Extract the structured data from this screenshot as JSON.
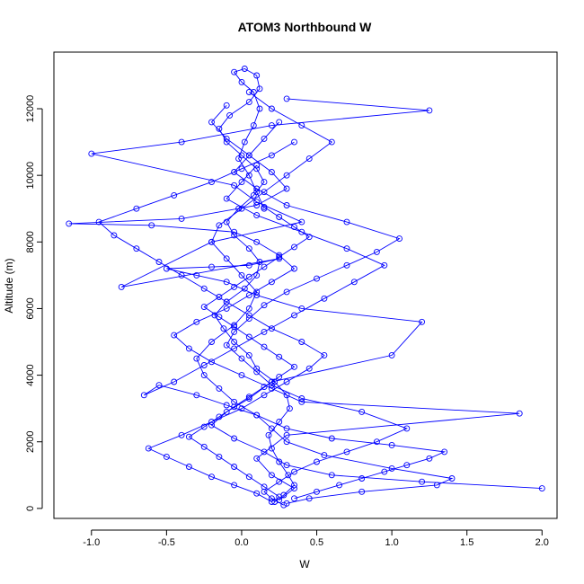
{
  "chart_data": {
    "type": "scatter",
    "title": "ATOM3 Northbound W",
    "xlabel": "W",
    "ylabel": "Altitude (m)",
    "xlim": [
      -1.25,
      2.1
    ],
    "ylim": [
      -300,
      13700
    ],
    "xticks": [
      -1.0,
      -0.5,
      0.0,
      0.5,
      1.0,
      1.5,
      2.0
    ],
    "yticks": [
      0,
      2000,
      4000,
      6000,
      8000,
      10000,
      12000
    ],
    "xtick_labels": [
      "-1.0",
      "-0.5",
      "0.0",
      "0.5",
      "1.0",
      "1.5",
      "2.0"
    ],
    "ytick_labels": [
      "0",
      "2000",
      "4000",
      "6000",
      "8000",
      "10000",
      "12000"
    ],
    "grid": false,
    "legend": "none",
    "color": "#0000ff",
    "series": [
      {
        "x": [
          0.22,
          0.28,
          0.35,
          0.31,
          0.25,
          0.2,
          0.18,
          0.25,
          0.32,
          0.3,
          0.22,
          0.1,
          0.05,
          -0.05,
          -0.12,
          -0.18,
          -0.1,
          0.02,
          0.1,
          0.12,
          0.05,
          -0.05,
          -0.1,
          -0.02,
          0.08,
          0.15,
          0.1,
          0.0,
          -0.1,
          -0.15,
          -0.08,
          0.05,
          0.12,
          0.1,
          0.02,
          -0.05,
          0.0,
          0.08,
          0.12,
          0.08,
          0.02,
          -0.02,
          0.05,
          0.1,
          0.15
        ],
        "y": [
          200,
          400,
          700,
          1000,
          1400,
          1800,
          2200,
          2600,
          3000,
          3400,
          3800,
          4200,
          4600,
          5000,
          5400,
          5800,
          6200,
          6600,
          7000,
          7400,
          7800,
          8200,
          8600,
          9000,
          9400,
          9800,
          10200,
          10600,
          11000,
          11400,
          11800,
          12200,
          12600,
          13000,
          13200,
          13100,
          12800,
          12500,
          12000,
          11500,
          11000,
          10500,
          10000,
          9500,
          9000
        ]
      },
      {
        "x": [
          0.3,
          0.45,
          0.8,
          1.3,
          1.4,
          1.0,
          0.55,
          0.3,
          0.2,
          0.1,
          -0.05,
          -0.15,
          -0.25,
          -0.3,
          -0.2,
          -0.05,
          0.05,
          0.1,
          0.0,
          -0.1,
          -0.2,
          -0.15,
          0.0,
          0.15,
          0.3,
          0.45,
          0.6,
          0.4,
          0.2,
          0.05
        ],
        "y": [
          150,
          300,
          500,
          700,
          900,
          1200,
          1600,
          2000,
          2400,
          2800,
          3200,
          3600,
          4000,
          4500,
          5000,
          5500,
          6000,
          6500,
          7000,
          7500,
          8000,
          8500,
          9000,
          9500,
          10000,
          10500,
          11000,
          11500,
          12000,
          12500
        ]
      },
      {
        "x": [
          0.25,
          0.35,
          0.2,
          0.1,
          0.3,
          1.85,
          0.4,
          0.2,
          0.0,
          -0.2,
          -0.35,
          -0.45,
          -0.3,
          -0.1,
          0.05,
          0.2,
          0.35,
          0.25,
          0.1,
          -0.05,
          -0.6,
          -1.15,
          -0.4,
          0.1,
          0.3,
          0.2,
          0.05,
          -0.1,
          -0.2,
          -0.1
        ],
        "y": [
          250,
          600,
          1000,
          1500,
          2200,
          2850,
          3200,
          3600,
          4000,
          4400,
          4800,
          5200,
          5600,
          6000,
          6400,
          6800,
          7200,
          7600,
          8000,
          8300,
          8500,
          8550,
          8700,
          9100,
          9600,
          10100,
          10600,
          11100,
          11600,
          12100
        ]
      },
      {
        "x": [
          2.0,
          1.2,
          0.6,
          0.3,
          0.15,
          -0.05,
          -0.2,
          -0.1,
          0.05,
          0.2,
          1.0,
          1.2,
          0.4,
          0.1,
          -0.1,
          -0.3,
          -0.5,
          -0.2,
          0.05,
          0.25,
          -0.8,
          -0.2,
          0.4,
          0.1,
          -0.05,
          -1.0,
          -0.4,
          0.2,
          1.25,
          0.3
        ],
        "y": [
          600,
          800,
          1000,
          1300,
          1700,
          2100,
          2500,
          2900,
          3300,
          3800,
          4600,
          5600,
          6000,
          6400,
          6800,
          7000,
          7200,
          7250,
          7300,
          7500,
          6650,
          8000,
          8600,
          9200,
          9700,
          10650,
          11000,
          11500,
          11950,
          12300
        ]
      },
      {
        "x": [
          0.28,
          0.2,
          0.15,
          0.25,
          0.35,
          0.5,
          0.7,
          0.9,
          1.1,
          0.8,
          0.4,
          0.2,
          0.1,
          0.0,
          -0.1,
          -0.05,
          0.05,
          0.15,
          0.3,
          0.5,
          0.7,
          0.9,
          1.05,
          0.7,
          0.3,
          0.1,
          -0.05,
          0.05,
          0.15,
          0.25
        ],
        "y": [
          100,
          300,
          500,
          800,
          1100,
          1400,
          1700,
          2000,
          2400,
          2900,
          3300,
          3700,
          4100,
          4500,
          4900,
          5300,
          5700,
          6100,
          6500,
          6900,
          7300,
          7700,
          8100,
          8600,
          9100,
          9600,
          10100,
          10600,
          11100,
          11600
        ]
      },
      {
        "x": [
          0.2,
          0.1,
          -0.05,
          -0.2,
          -0.35,
          -0.5,
          -0.62,
          -0.4,
          -0.2,
          0.0,
          0.15,
          0.3,
          0.45,
          0.55,
          0.4,
          0.2,
          0.05,
          -0.1,
          -0.25,
          -0.4,
          -0.55,
          -0.7,
          -0.85,
          -0.95,
          -0.7,
          -0.45,
          -0.2,
          0.0,
          0.2,
          0.35
        ],
        "y": [
          200,
          450,
          700,
          950,
          1250,
          1550,
          1800,
          2200,
          2600,
          3000,
          3400,
          3800,
          4200,
          4600,
          5000,
          5400,
          5800,
          6200,
          6600,
          7000,
          7400,
          7800,
          8200,
          8600,
          9000,
          9400,
          9800,
          10200,
          10600,
          11000
        ]
      },
      {
        "x": [
          0.35,
          0.5,
          0.65,
          0.8,
          0.95,
          1.1,
          1.25,
          1.35,
          1.0,
          0.6,
          0.3,
          0.1,
          -0.1,
          -0.3,
          -0.55,
          -0.65,
          -0.45,
          -0.25,
          -0.05,
          0.15,
          0.35,
          0.55,
          0.75,
          0.95,
          0.7,
          0.4,
          0.1,
          -0.1,
          0.0,
          0.1
        ],
        "y": [
          300,
          500,
          700,
          900,
          1100,
          1300,
          1500,
          1700,
          1900,
          2100,
          2400,
          2800,
          3100,
          3400,
          3700,
          3400,
          3800,
          4300,
          4800,
          5300,
          5800,
          6300,
          6800,
          7300,
          7800,
          8300,
          8800,
          9300,
          9800,
          10300
        ]
      },
      {
        "x": [
          0.25,
          0.15,
          0.05,
          -0.05,
          -0.15,
          -0.25,
          -0.35,
          -0.25,
          -0.15,
          -0.05,
          0.05,
          0.15,
          0.25,
          0.35,
          0.25,
          0.15,
          0.05,
          -0.05,
          -0.15,
          -0.25,
          -0.15,
          -0.05,
          0.05,
          0.15,
          0.25,
          0.35,
          0.45,
          0.35,
          0.25,
          0.15
        ],
        "y": [
          350,
          650,
          950,
          1250,
          1550,
          1850,
          2150,
          2450,
          2750,
          3050,
          3350,
          3650,
          3950,
          4250,
          4550,
          4850,
          5150,
          5450,
          5750,
          6050,
          6350,
          6650,
          6950,
          7250,
          7550,
          7850,
          8150,
          8450,
          8750,
          9050
        ]
      }
    ]
  }
}
